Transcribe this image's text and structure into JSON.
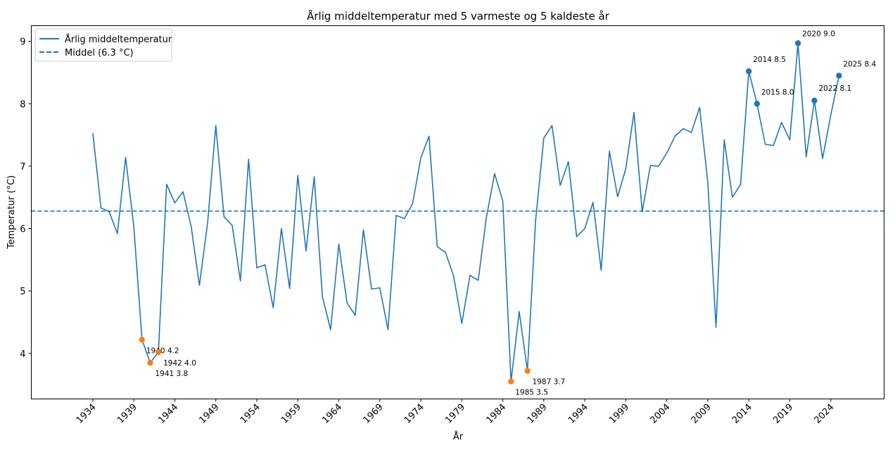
{
  "chart_data": {
    "type": "line",
    "title": "Årlig middeltemperatur med 5 varmeste og 5 kaldeste år",
    "xlabel": "År",
    "ylabel": "Temperatur (°C)",
    "xlim": [
      1926.5,
      2030.5
    ],
    "ylim": [
      3.27,
      9.25
    ],
    "x_ticks": [
      1934,
      1939,
      1944,
      1949,
      1954,
      1959,
      1964,
      1969,
      1974,
      1979,
      1984,
      1989,
      1994,
      1999,
      2004,
      2009,
      2014,
      2019,
      2024
    ],
    "y_ticks": [
      4,
      5,
      6,
      7,
      8,
      9
    ],
    "mean": 6.28,
    "colors": {
      "line": "#1f77b4",
      "warm": "#1f77b4",
      "cold": "#ff7f0e"
    },
    "legend": {
      "location": "top-left",
      "entries": [
        {
          "label": "Årlig middeltemperatur",
          "style": "solid"
        },
        {
          "label": "Middel (6.3 °C)",
          "style": "dashed"
        }
      ]
    },
    "series": [
      {
        "name": "Årlig middeltemperatur",
        "x": [
          1934,
          1935,
          1936,
          1937,
          1938,
          1939,
          1940,
          1941,
          1942,
          1943,
          1944,
          1945,
          1946,
          1947,
          1948,
          1949,
          1950,
          1951,
          1952,
          1953,
          1954,
          1955,
          1956,
          1957,
          1958,
          1959,
          1960,
          1961,
          1962,
          1963,
          1964,
          1965,
          1966,
          1967,
          1968,
          1969,
          1970,
          1971,
          1972,
          1973,
          1974,
          1975,
          1976,
          1977,
          1978,
          1979,
          1980,
          1981,
          1982,
          1983,
          1984,
          1985,
          1986,
          1987,
          1988,
          1989,
          1990,
          1991,
          1992,
          1993,
          1994,
          1995,
          1996,
          1997,
          1998,
          1999,
          2000,
          2001,
          2002,
          2003,
          2004,
          2005,
          2006,
          2007,
          2008,
          2009,
          2010,
          2011,
          2012,
          2013,
          2014,
          2015,
          2016,
          2017,
          2018,
          2019,
          2020,
          2021,
          2022,
          2023,
          2024,
          2025
        ],
        "values": [
          7.53,
          6.33,
          6.27,
          5.92,
          7.14,
          6.03,
          4.22,
          3.85,
          4.02,
          6.71,
          6.41,
          6.59,
          6.03,
          5.09,
          6.09,
          7.65,
          6.19,
          6.05,
          5.16,
          7.11,
          5.37,
          5.42,
          4.73,
          6.0,
          5.04,
          6.85,
          5.64,
          6.83,
          4.91,
          4.38,
          5.75,
          4.81,
          4.61,
          5.98,
          5.03,
          5.05,
          4.38,
          6.21,
          6.16,
          6.4,
          7.13,
          7.48,
          5.71,
          5.62,
          5.24,
          4.48,
          5.25,
          5.17,
          6.18,
          6.88,
          6.44,
          3.55,
          4.67,
          3.72,
          6.13,
          7.45,
          7.65,
          6.69,
          7.07,
          5.87,
          6.0,
          6.42,
          5.33,
          7.24,
          6.51,
          6.96,
          7.86,
          6.27,
          7.01,
          7.0,
          7.21,
          7.48,
          7.6,
          7.54,
          7.94,
          6.74,
          4.42,
          7.42,
          6.5,
          6.71,
          8.52,
          8.0,
          7.35,
          7.33,
          7.7,
          7.42,
          8.97,
          7.15,
          8.05,
          7.12,
          7.82,
          8.45
        ]
      }
    ],
    "annotations": [
      {
        "year": 2020,
        "value": 8.97,
        "label": "2020 9.0",
        "group": "warm",
        "dx": 6,
        "dy": -10
      },
      {
        "year": 2014,
        "value": 8.52,
        "label": "2014 8.5",
        "group": "warm",
        "dx": 6,
        "dy": -13
      },
      {
        "year": 2025,
        "value": 8.45,
        "label": "2025 8.4",
        "group": "warm",
        "dx": 6,
        "dy": -13
      },
      {
        "year": 2022,
        "value": 8.05,
        "label": "2022 8.1",
        "group": "warm",
        "dx": 6,
        "dy": -14
      },
      {
        "year": 2015,
        "value": 8.0,
        "label": "2015 8.0",
        "group": "warm",
        "dx": 6,
        "dy": -13
      },
      {
        "year": 1940,
        "value": 4.22,
        "label": "1940 4.2",
        "group": "cold",
        "dx": 6,
        "dy": 19
      },
      {
        "year": 1942,
        "value": 4.02,
        "label": "1942 4.0",
        "group": "cold",
        "dx": 7,
        "dy": 19
      },
      {
        "year": 1941,
        "value": 3.85,
        "label": "1941 3.8",
        "group": "cold",
        "dx": 7,
        "dy": 19
      },
      {
        "year": 1987,
        "value": 3.72,
        "label": "1987 3.7",
        "group": "cold",
        "dx": 7,
        "dy": 19
      },
      {
        "year": 1985,
        "value": 3.55,
        "label": "1985 3.5",
        "group": "cold",
        "dx": 6,
        "dy": 19
      }
    ]
  }
}
